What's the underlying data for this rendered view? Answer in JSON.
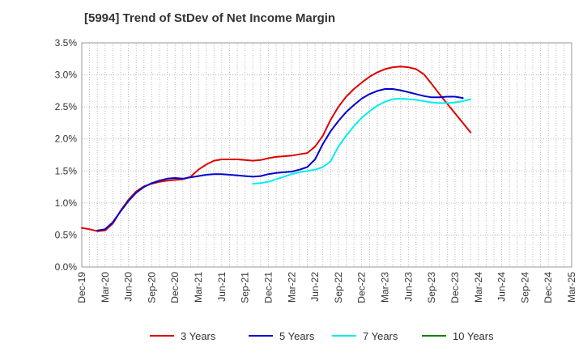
{
  "chart_data": {
    "type": "line",
    "title": "[5994]  Trend of StDev of Net Income Margin",
    "xlabel": "",
    "ylabel": "",
    "x_tick_labels": [
      "Dec-19",
      "Mar-20",
      "Jun-20",
      "Sep-20",
      "Dec-20",
      "Mar-21",
      "Jun-21",
      "Sep-21",
      "Dec-21",
      "Mar-22",
      "Jun-22",
      "Sep-22",
      "Dec-22",
      "Mar-23",
      "Jun-23",
      "Sep-23",
      "Dec-23",
      "Mar-24",
      "Jun-24",
      "Sep-24",
      "Dec-24",
      "Mar-25"
    ],
    "y_tick_labels": [
      "0.0%",
      "0.5%",
      "1.0%",
      "1.5%",
      "2.0%",
      "2.5%",
      "3.0%",
      "3.5%"
    ],
    "ylim": [
      0,
      3.5
    ],
    "grid": true,
    "legend_position": "bottom",
    "series": [
      {
        "name": "3 Years",
        "color": "#dd0000",
        "start_index": 0,
        "values": [
          0.61,
          0.59,
          0.56,
          0.57,
          0.68,
          0.88,
          1.05,
          1.18,
          1.26,
          1.3,
          1.33,
          1.35,
          1.36,
          1.37,
          1.41,
          1.52,
          1.6,
          1.66,
          1.68,
          1.68,
          1.68,
          1.67,
          1.66,
          1.67,
          1.7,
          1.72,
          1.73,
          1.74,
          1.76,
          1.78,
          1.88,
          2.05,
          2.3,
          2.5,
          2.66,
          2.78,
          2.88,
          2.97,
          3.04,
          3.09,
          3.12,
          3.13,
          3.12,
          3.09,
          3.01,
          2.86,
          2.7,
          2.55,
          2.4,
          2.25,
          2.1
        ]
      },
      {
        "name": "5 Years",
        "color": "#0000cc",
        "start_index": 2,
        "values": [
          0.57,
          0.59,
          0.7,
          0.87,
          1.03,
          1.16,
          1.25,
          1.31,
          1.35,
          1.38,
          1.39,
          1.38,
          1.4,
          1.42,
          1.44,
          1.45,
          1.45,
          1.44,
          1.43,
          1.42,
          1.41,
          1.42,
          1.45,
          1.47,
          1.48,
          1.49,
          1.52,
          1.56,
          1.68,
          1.92,
          2.12,
          2.28,
          2.42,
          2.53,
          2.63,
          2.7,
          2.75,
          2.78,
          2.78,
          2.76,
          2.73,
          2.7,
          2.67,
          2.65,
          2.65,
          2.66,
          2.66,
          2.64
        ]
      },
      {
        "name": "7 Years",
        "color": "#00eeee",
        "start_index": 22,
        "values": [
          1.3,
          1.31,
          1.33,
          1.37,
          1.41,
          1.45,
          1.48,
          1.5,
          1.52,
          1.56,
          1.65,
          1.88,
          2.05,
          2.2,
          2.33,
          2.43,
          2.52,
          2.58,
          2.62,
          2.63,
          2.62,
          2.61,
          2.59,
          2.57,
          2.56,
          2.56,
          2.57,
          2.59,
          2.62
        ]
      },
      {
        "name": "10 Years",
        "color": "#008000",
        "start_index": 0,
        "values": []
      }
    ]
  }
}
